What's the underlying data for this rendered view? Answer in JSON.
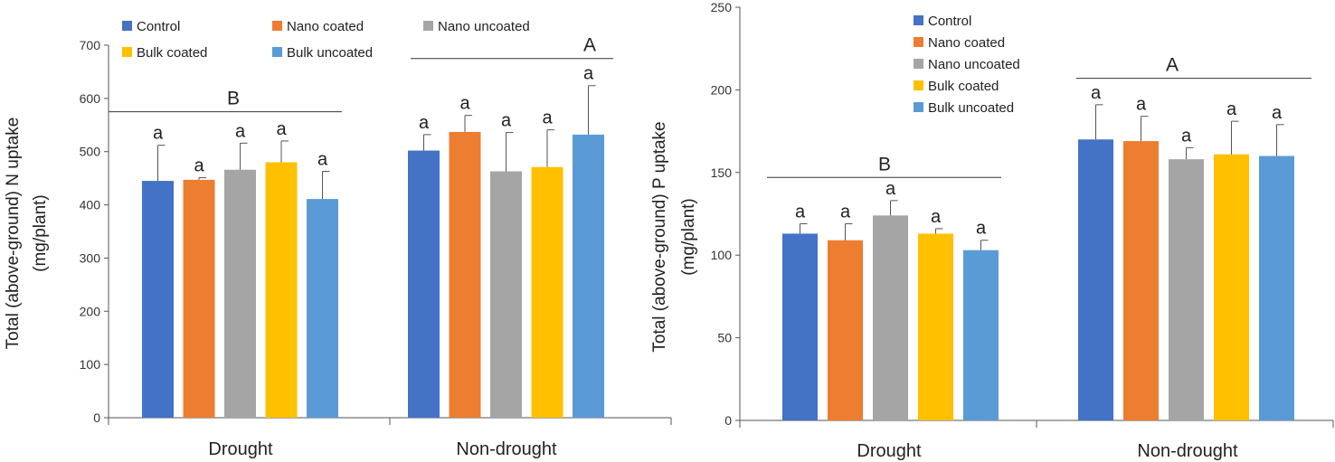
{
  "chart_data": [
    {
      "type": "bar",
      "title": "",
      "ylabel_line1": "Total (above-ground)  N uptake",
      "ylabel_line2": "(mg/plant)",
      "xlabel": "",
      "ylim": [
        0,
        700
      ],
      "yticks": [
        0,
        100,
        200,
        300,
        400,
        500,
        600,
        700
      ],
      "grid": false,
      "legend_position": "top",
      "categories": [
        "Drought",
        "Non-drought"
      ],
      "series": [
        {
          "name": "Control",
          "color": "#4472c4",
          "values": [
            445,
            502
          ],
          "errors": [
            67,
            30
          ],
          "letters": [
            "a",
            "a"
          ]
        },
        {
          "name": "Nano coated",
          "color": "#ed7d31",
          "values": [
            447,
            537
          ],
          "errors": [
            4,
            31
          ],
          "letters": [
            "a",
            "a"
          ]
        },
        {
          "name": "Nano uncoated",
          "color": "#a5a5a5",
          "values": [
            466,
            463
          ],
          "errors": [
            50,
            73
          ],
          "letters": [
            "a",
            "a"
          ]
        },
        {
          "name": "Bulk coated",
          "color": "#ffc000",
          "values": [
            480,
            471
          ],
          "errors": [
            40,
            70
          ],
          "letters": [
            "a",
            "a"
          ]
        },
        {
          "name": "Bulk uncoated",
          "color": "#5b9bd5",
          "values": [
            411,
            532
          ],
          "errors": [
            52,
            92
          ],
          "letters": [
            "a",
            "a"
          ]
        }
      ],
      "group_letters": [
        {
          "label": "B",
          "y": 575
        },
        {
          "label": "A",
          "y": 675
        }
      ]
    },
    {
      "type": "bar",
      "title": "",
      "ylabel_line1": "Total (above-ground)  P uptake",
      "ylabel_line2": "(mg/plant)",
      "xlabel": "",
      "ylim": [
        0,
        250
      ],
      "yticks": [
        0,
        50,
        100,
        150,
        200,
        250
      ],
      "grid": false,
      "legend_position": "top-left",
      "categories": [
        "Drought",
        "Non-drought"
      ],
      "series": [
        {
          "name": "Control",
          "color": "#4472c4",
          "values": [
            113,
            170
          ],
          "errors": [
            6,
            21
          ],
          "letters": [
            "a",
            "a"
          ]
        },
        {
          "name": "Nano coated",
          "color": "#ed7d31",
          "values": [
            109,
            169
          ],
          "errors": [
            10,
            15
          ],
          "letters": [
            "a",
            "a"
          ]
        },
        {
          "name": "Nano uncoated",
          "color": "#a5a5a5",
          "values": [
            124,
            158
          ],
          "errors": [
            9,
            7
          ],
          "letters": [
            "a",
            "a"
          ]
        },
        {
          "name": "Bulk coated",
          "color": "#ffc000",
          "values": [
            113,
            161
          ],
          "errors": [
            3,
            20
          ],
          "letters": [
            "a",
            "a"
          ]
        },
        {
          "name": "Bulk uncoated",
          "color": "#5b9bd5",
          "values": [
            103,
            160
          ],
          "errors": [
            6,
            19
          ],
          "letters": [
            "a",
            "a"
          ]
        }
      ],
      "group_letters": [
        {
          "label": "B",
          "y": 147
        },
        {
          "label": "A",
          "y": 207
        }
      ]
    }
  ]
}
